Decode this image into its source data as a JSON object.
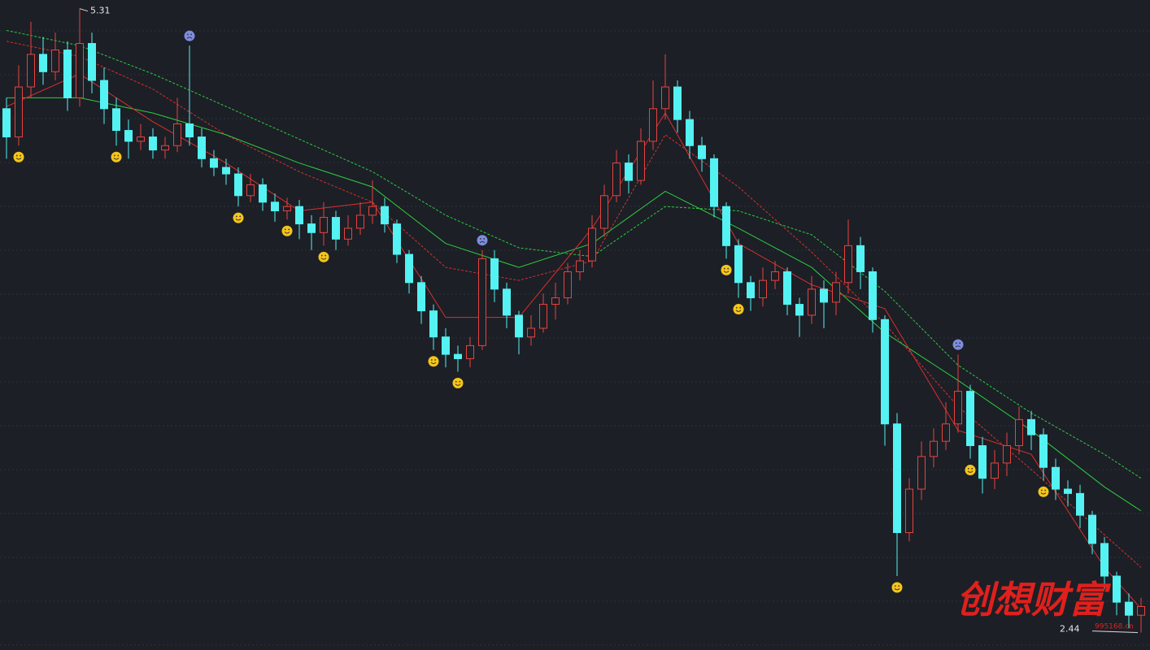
{
  "chart_data": {
    "type": "candlestick",
    "ylim": [
      2.36,
      5.35
    ],
    "up_color": "#e8433f",
    "down_color": "#54f2f2",
    "open": [
      4.85,
      4.72,
      4.95,
      5.1,
      5.02,
      5.12,
      4.9,
      5.15,
      4.98,
      4.85,
      4.75,
      4.7,
      4.72,
      4.66,
      4.68,
      4.78,
      4.72,
      4.62,
      4.58,
      4.55,
      4.45,
      4.5,
      4.42,
      4.38,
      4.4,
      4.32,
      4.28,
      4.35,
      4.25,
      4.3,
      4.36,
      4.4,
      4.32,
      4.18,
      4.05,
      3.92,
      3.8,
      3.72,
      3.7,
      3.76,
      4.16,
      4.02,
      3.9,
      3.8,
      3.84,
      3.95,
      3.98,
      4.1,
      4.15,
      4.3,
      4.45,
      4.6,
      4.52,
      4.7,
      4.85,
      4.95,
      4.8,
      4.68,
      4.62,
      4.4,
      4.22,
      4.05,
      3.98,
      4.06,
      4.1,
      3.95,
      3.9,
      4.02,
      3.96,
      4.05,
      4.22,
      4.1,
      3.88,
      3.4,
      2.9,
      3.1,
      3.25,
      3.32,
      3.4,
      3.55,
      3.3,
      3.15,
      3.22,
      3.3,
      3.42,
      3.35,
      3.2,
      3.1,
      3.08,
      2.98,
      2.85,
      2.7,
      2.58,
      2.52
    ],
    "high": [
      4.9,
      5.05,
      5.25,
      5.18,
      5.2,
      5.16,
      5.31,
      5.2,
      5.04,
      4.9,
      4.8,
      4.78,
      4.76,
      4.72,
      4.9,
      5.14,
      4.76,
      4.66,
      4.62,
      4.58,
      4.55,
      4.53,
      4.46,
      4.44,
      4.43,
      4.36,
      4.42,
      4.38,
      4.36,
      4.42,
      4.52,
      4.44,
      4.34,
      4.2,
      4.08,
      3.95,
      3.84,
      3.76,
      3.8,
      4.2,
      4.2,
      4.05,
      3.92,
      3.9,
      4.0,
      4.05,
      4.14,
      4.2,
      4.36,
      4.5,
      4.66,
      4.64,
      4.76,
      4.98,
      5.1,
      4.98,
      4.84,
      4.72,
      4.64,
      4.42,
      4.25,
      4.08,
      4.12,
      4.15,
      4.12,
      3.98,
      4.08,
      4.06,
      4.1,
      4.34,
      4.26,
      4.12,
      3.9,
      3.45,
      3.15,
      3.32,
      3.38,
      3.5,
      3.72,
      3.58,
      3.34,
      3.28,
      3.36,
      3.48,
      3.46,
      3.38,
      3.24,
      3.14,
      3.12,
      3.0,
      2.88,
      2.72,
      2.62,
      2.6
    ],
    "low": [
      4.62,
      4.68,
      4.9,
      4.96,
      4.98,
      4.84,
      4.86,
      4.92,
      4.78,
      4.68,
      4.62,
      4.66,
      4.62,
      4.62,
      4.65,
      4.68,
      4.58,
      4.54,
      4.5,
      4.4,
      4.42,
      4.38,
      4.33,
      4.34,
      4.25,
      4.2,
      4.22,
      4.2,
      4.22,
      4.27,
      4.32,
      4.28,
      4.14,
      4.0,
      3.86,
      3.74,
      3.66,
      3.64,
      3.66,
      3.74,
      3.96,
      3.84,
      3.72,
      3.76,
      3.82,
      3.88,
      3.95,
      4.06,
      4.12,
      4.26,
      4.42,
      4.46,
      4.5,
      4.66,
      4.8,
      4.74,
      4.62,
      4.56,
      4.35,
      4.16,
      3.98,
      3.92,
      3.94,
      4.02,
      3.9,
      3.8,
      3.86,
      3.84,
      3.9,
      4.0,
      4.02,
      3.82,
      3.3,
      2.7,
      2.86,
      3.05,
      3.2,
      3.28,
      3.36,
      3.24,
      3.08,
      3.1,
      3.16,
      3.26,
      3.28,
      3.14,
      3.05,
      3.02,
      2.92,
      2.8,
      2.64,
      2.52,
      2.46,
      2.44
    ],
    "close": [
      4.72,
      4.95,
      5.1,
      5.02,
      5.12,
      4.9,
      5.15,
      4.98,
      4.85,
      4.75,
      4.7,
      4.72,
      4.66,
      4.68,
      4.78,
      4.72,
      4.62,
      4.58,
      4.55,
      4.45,
      4.5,
      4.42,
      4.38,
      4.4,
      4.32,
      4.28,
      4.35,
      4.25,
      4.3,
      4.36,
      4.4,
      4.32,
      4.18,
      4.05,
      3.92,
      3.8,
      3.72,
      3.7,
      3.76,
      4.16,
      4.02,
      3.9,
      3.8,
      3.84,
      3.95,
      3.98,
      4.1,
      4.15,
      4.3,
      4.45,
      4.6,
      4.52,
      4.7,
      4.85,
      4.95,
      4.8,
      4.68,
      4.62,
      4.4,
      4.22,
      4.05,
      3.98,
      4.06,
      4.1,
      3.95,
      3.9,
      4.02,
      3.96,
      4.05,
      4.22,
      4.1,
      3.88,
      3.4,
      2.9,
      3.1,
      3.25,
      3.32,
      3.4,
      3.55,
      3.3,
      3.15,
      3.22,
      3.3,
      3.42,
      3.35,
      3.2,
      3.1,
      3.08,
      2.98,
      2.85,
      2.7,
      2.58,
      2.52,
      2.56
    ],
    "line_x": [
      0,
      6,
      12,
      18,
      24,
      30,
      36,
      42,
      48,
      54,
      60,
      66,
      72,
      78,
      84,
      90,
      93
    ],
    "lines": [
      {
        "color": "#2ecc40",
        "dashed": true,
        "values": [
          5.21,
          5.14,
          5.01,
          4.86,
          4.71,
          4.56,
          4.36,
          4.21,
          4.17,
          4.4,
          4.38,
          4.27,
          4.01,
          3.67,
          3.45,
          3.26,
          3.15
        ]
      },
      {
        "color": "#d8302c",
        "dashed": true,
        "values": [
          5.16,
          5.09,
          4.94,
          4.73,
          4.56,
          4.42,
          4.12,
          4.06,
          4.15,
          4.73,
          4.49,
          4.19,
          3.86,
          3.48,
          3.19,
          2.89,
          2.74
        ]
      },
      {
        "color": "#2ecc40",
        "dashed": false,
        "values": [
          4.9,
          4.9,
          4.83,
          4.73,
          4.6,
          4.49,
          4.23,
          4.12,
          4.23,
          4.47,
          4.3,
          4.12,
          3.82,
          3.6,
          3.37,
          3.11,
          3.0
        ]
      },
      {
        "color": "#d8302c",
        "dashed": false,
        "values": [
          4.86,
          5.01,
          4.79,
          4.6,
          4.38,
          4.42,
          3.89,
          3.89,
          4.3,
          4.83,
          4.23,
          4.04,
          3.93,
          3.37,
          3.26,
          2.74,
          2.55
        ]
      }
    ],
    "buy_signals": [
      1,
      9,
      19,
      23,
      26,
      35,
      37,
      59,
      60,
      73,
      79,
      85
    ],
    "sell_signals": [
      15,
      39,
      78
    ],
    "watermark": "创想财富",
    "watermark_sub": "995168.cn"
  }
}
